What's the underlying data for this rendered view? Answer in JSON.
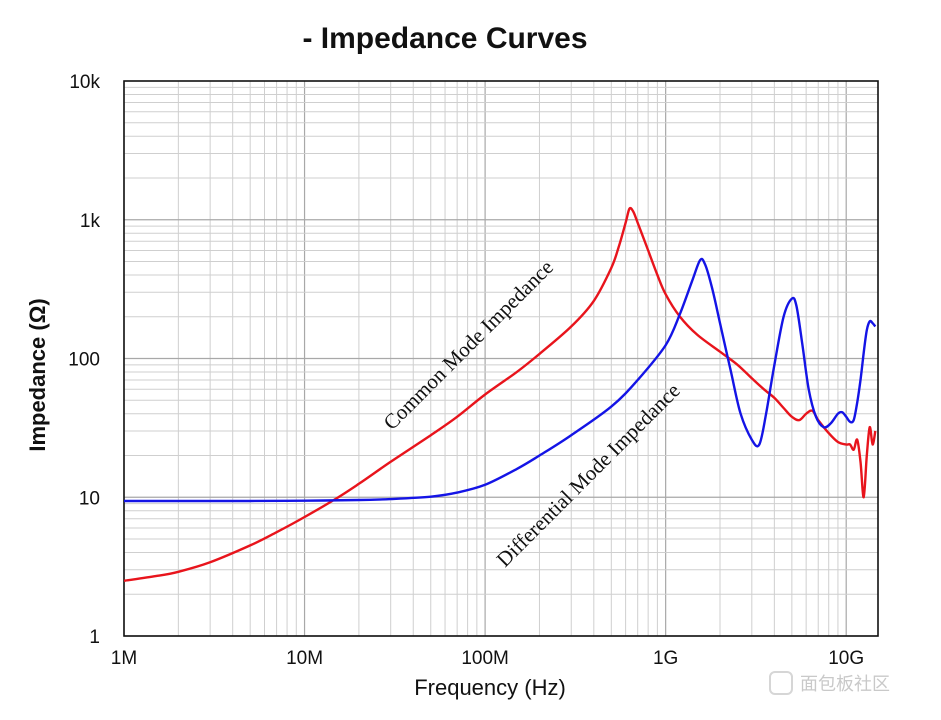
{
  "chart_data": {
    "type": "line",
    "title": "- Impedance Curves",
    "xlabel": "Frequency (Hz)",
    "ylabel": "Impedance (Ω)",
    "xscale": "log",
    "yscale": "log",
    "xlim": [
      1000000,
      15000000000
    ],
    "ylim": [
      1,
      10000
    ],
    "grid": true,
    "x_ticks": [
      {
        "value": 1000000,
        "label": "1M"
      },
      {
        "value": 10000000,
        "label": "10M"
      },
      {
        "value": 100000000,
        "label": "100M"
      },
      {
        "value": 1000000000,
        "label": "1G"
      },
      {
        "value": 10000000000,
        "label": "10G"
      }
    ],
    "y_ticks": [
      {
        "value": 1,
        "label": "1"
      },
      {
        "value": 10,
        "label": "10"
      },
      {
        "value": 100,
        "label": "100"
      },
      {
        "value": 1000,
        "label": "1k"
      },
      {
        "value": 10000,
        "label": "10k"
      }
    ],
    "series": [
      {
        "name": "Common Mode Impedance",
        "color": "#e8141c",
        "x": [
          1000000,
          1500000,
          2000000,
          3000000,
          5000000,
          7000000,
          10000000,
          15000000,
          20000000,
          30000000,
          50000000,
          70000000,
          100000000,
          150000000,
          200000000,
          300000000,
          400000000,
          500000000,
          550000000,
          600000000,
          630000000,
          660000000,
          700000000,
          800000000,
          900000000,
          1000000000,
          1200000000,
          1500000000,
          2000000000,
          2500000000,
          3000000000,
          3500000000,
          4000000000,
          4500000000,
          5000000000,
          5500000000,
          6000000000,
          6500000000,
          7000000000,
          8000000000,
          9000000000,
          10000000000,
          10500000000,
          11000000000,
          11500000000,
          12000000000,
          12500000000,
          13000000000,
          13500000000,
          14000000000,
          14500000000
        ],
        "y": [
          2.5,
          2.7,
          2.9,
          3.4,
          4.5,
          5.6,
          7.2,
          9.8,
          12.5,
          18,
          28,
          38,
          55,
          80,
          108,
          170,
          260,
          450,
          640,
          950,
          1200,
          1150,
          950,
          600,
          400,
          290,
          200,
          148,
          112,
          90,
          72,
          60,
          52,
          44,
          38,
          36,
          40,
          42,
          36,
          29,
          25,
          24,
          24,
          22,
          26,
          18,
          10,
          20,
          32,
          24,
          30
        ]
      },
      {
        "name": "Differential Mode Impedance",
        "color": "#1414e6",
        "x": [
          1000000,
          2000000,
          5000000,
          10000000,
          20000000,
          30000000,
          50000000,
          70000000,
          100000000,
          150000000,
          200000000,
          300000000,
          500000000,
          700000000,
          1000000000,
          1200000000,
          1400000000,
          1550000000,
          1650000000,
          1800000000,
          2000000000,
          2300000000,
          2600000000,
          3000000000,
          3300000000,
          3600000000,
          4000000000,
          4500000000,
          5000000000,
          5300000000,
          5700000000,
          6200000000,
          6800000000,
          7500000000,
          8200000000,
          9000000000,
          9500000000,
          10000000000,
          10500000000,
          11000000000,
          11500000000,
          12000000000,
          12500000000,
          13000000000,
          13500000000,
          14000000000,
          14500000000
        ],
        "y": [
          9.4,
          9.4,
          9.4,
          9.45,
          9.55,
          9.7,
          10.1,
          10.8,
          12.3,
          16,
          20,
          28,
          45,
          70,
          125,
          210,
          360,
          510,
          480,
          330,
          180,
          80,
          40,
          26,
          24,
          40,
          90,
          200,
          270,
          240,
          130,
          60,
          38,
          32,
          34,
          40,
          41,
          38,
          35,
          36,
          48,
          70,
          110,
          160,
          185,
          180,
          170
        ]
      }
    ],
    "annotations": [
      {
        "text": "Common Mode Impedance",
        "series": "Common Mode Impedance"
      },
      {
        "text": "Differential Mode Impedance",
        "series": "Differential Mode Impedance"
      }
    ]
  },
  "watermark": "面包板社区"
}
